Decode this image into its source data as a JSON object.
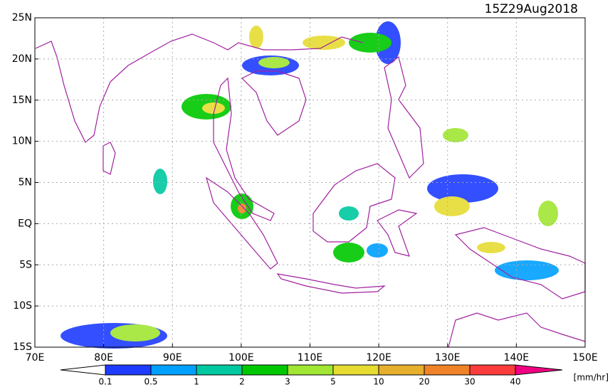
{
  "title": "15Z29Aug2018",
  "lat_labels": [
    "25N",
    "20N",
    "15N",
    "10N",
    "5N",
    "EQ",
    "5S",
    "10S",
    "15S"
  ],
  "lon_labels": [
    "70E",
    "80E",
    "90E",
    "100E",
    "110E",
    "120E",
    "130E",
    "140E",
    "150E"
  ],
  "colorbar": {
    "levels": [
      0.1,
      0.5,
      1,
      2,
      3,
      5,
      10,
      20,
      30,
      40
    ],
    "colors": [
      "#1e3cff",
      "#00a0ff",
      "#00c8a0",
      "#00c800",
      "#a0e632",
      "#e6dc32",
      "#e6af2d",
      "#f08228",
      "#fa3c3c",
      "#f00082"
    ],
    "below_color": "#ffffff",
    "unit": "[mm/hr]"
  }
}
